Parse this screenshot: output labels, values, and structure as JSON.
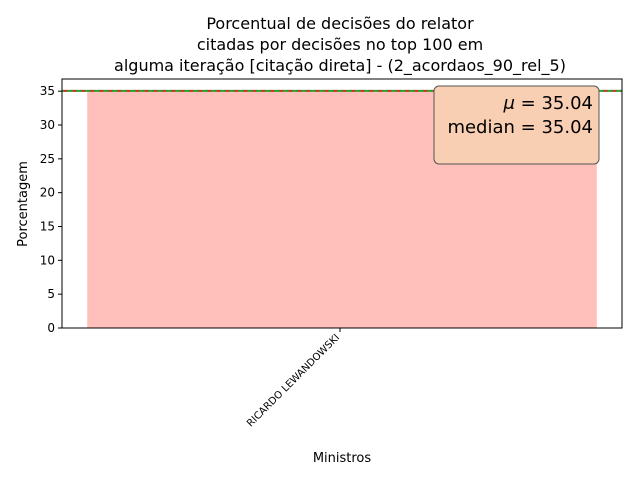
{
  "chart_data": {
    "type": "bar",
    "title_lines": [
      "Porcentual de decisões do relator",
      "citadas por decisões no top 100 em",
      "alguma iteração [citação direta] - (2_acordaos_90_rel_5)"
    ],
    "xlabel": "Ministros",
    "ylabel": "Porcentagem",
    "categories": [
      "RICARDO LEWANDOWSKI"
    ],
    "values": [
      35.04
    ],
    "ylim": [
      0,
      36.8
    ],
    "yticks": [
      0,
      5,
      10,
      15,
      20,
      25,
      30,
      35
    ],
    "bar_color": "#ffc0bb",
    "mean_line": {
      "value": 35.04,
      "color": "#d62728"
    },
    "median_line": {
      "value": 35.04,
      "color": "#2ca02c"
    },
    "stats_box": {
      "mean_label": "μ",
      "mean_text": "35.04",
      "median_label": "median",
      "median_text": "35.04",
      "placement": "top-right",
      "fill": "#f9cfb4",
      "edge": "#555555"
    },
    "grid": false
  }
}
